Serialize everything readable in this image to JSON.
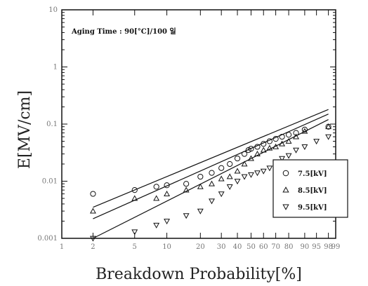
{
  "chart_data": {
    "type": "scatter",
    "title": "",
    "xlabel": "Breakdown Probability[%]",
    "ylabel": "E[MV/cm]",
    "x_scale": "weibull-probability",
    "y_scale": "log",
    "ylim": [
      0.001,
      10
    ],
    "xlim": [
      1,
      99
    ],
    "x_ticks": [
      1,
      2,
      5,
      10,
      20,
      30,
      40,
      50,
      60,
      70,
      80,
      90,
      95,
      98,
      99
    ],
    "y_ticks": [
      {
        "value": 0.001,
        "label": "0.001"
      },
      {
        "value": 0.01,
        "label": "0.01"
      },
      {
        "value": 0.1,
        "label": "0.1"
      },
      {
        "value": 1,
        "label": "1"
      },
      {
        "value": 10,
        "label": "10"
      }
    ],
    "annotation": "Aging Time : 90[°C]/100 일",
    "legend_position": "bottom-right",
    "series": [
      {
        "name": "7.5[kV]",
        "marker": "circle",
        "fit": [
          [
            2,
            0.0035
          ],
          [
            98,
            0.18
          ]
        ],
        "points": [
          [
            2,
            0.006
          ],
          [
            5,
            0.007
          ],
          [
            8,
            0.008
          ],
          [
            10,
            0.0085
          ],
          [
            15,
            0.009
          ],
          [
            20,
            0.012
          ],
          [
            25,
            0.014
          ],
          [
            30,
            0.017
          ],
          [
            35,
            0.02
          ],
          [
            40,
            0.025
          ],
          [
            45,
            0.03
          ],
          [
            48,
            0.035
          ],
          [
            50,
            0.037
          ],
          [
            55,
            0.04
          ],
          [
            60,
            0.045
          ],
          [
            65,
            0.05
          ],
          [
            70,
            0.055
          ],
          [
            75,
            0.06
          ],
          [
            80,
            0.065
          ],
          [
            85,
            0.07
          ],
          [
            90,
            0.08
          ],
          [
            98,
            0.09
          ]
        ]
      },
      {
        "name": "8.5[kV]",
        "marker": "triangle-up",
        "fit": [
          [
            2,
            0.0022
          ],
          [
            98,
            0.15
          ]
        ],
        "points": [
          [
            2,
            0.003
          ],
          [
            5,
            0.005
          ],
          [
            8,
            0.005
          ],
          [
            10,
            0.006
          ],
          [
            15,
            0.007
          ],
          [
            20,
            0.008
          ],
          [
            25,
            0.009
          ],
          [
            30,
            0.011
          ],
          [
            35,
            0.012
          ],
          [
            40,
            0.015
          ],
          [
            45,
            0.02
          ],
          [
            50,
            0.025
          ],
          [
            55,
            0.03
          ],
          [
            60,
            0.035
          ],
          [
            65,
            0.038
          ],
          [
            70,
            0.04
          ],
          [
            75,
            0.045
          ],
          [
            80,
            0.05
          ],
          [
            85,
            0.06
          ],
          [
            90,
            0.075
          ],
          [
            98,
            0.09
          ]
        ]
      },
      {
        "name": "9.5[kV]",
        "marker": "triangle-down",
        "fit": [
          [
            2,
            0.001
          ],
          [
            98,
            0.12
          ]
        ],
        "points": [
          [
            2,
            0.001
          ],
          [
            5,
            0.0013
          ],
          [
            8,
            0.0017
          ],
          [
            10,
            0.002
          ],
          [
            15,
            0.0025
          ],
          [
            20,
            0.003
          ],
          [
            25,
            0.0045
          ],
          [
            30,
            0.006
          ],
          [
            35,
            0.008
          ],
          [
            40,
            0.01
          ],
          [
            45,
            0.012
          ],
          [
            50,
            0.013
          ],
          [
            55,
            0.014
          ],
          [
            60,
            0.015
          ],
          [
            65,
            0.017
          ],
          [
            70,
            0.02
          ],
          [
            75,
            0.025
          ],
          [
            80,
            0.028
          ],
          [
            85,
            0.035
          ],
          [
            90,
            0.04
          ],
          [
            95,
            0.05
          ],
          [
            98,
            0.06
          ]
        ]
      }
    ]
  }
}
